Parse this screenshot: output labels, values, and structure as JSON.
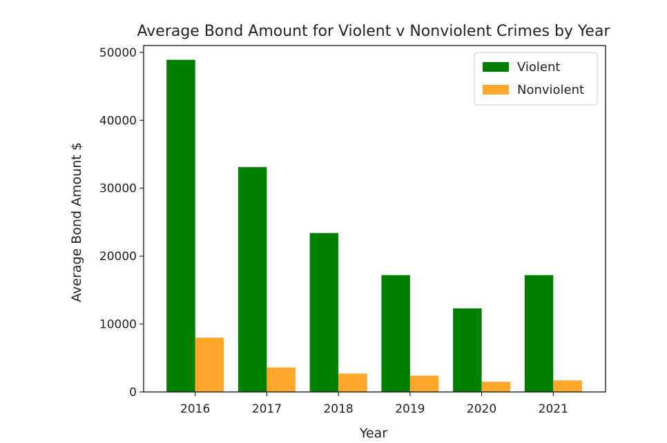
{
  "chart_data": {
    "type": "bar",
    "title": "Average Bond Amount for Violent v Nonviolent Crimes by Year",
    "xlabel": "Year",
    "ylabel": "Average Bond Amount $",
    "categories": [
      "2016",
      "2017",
      "2018",
      "2019",
      "2020",
      "2021"
    ],
    "series": [
      {
        "name": "Violent",
        "color": "#008000",
        "values": [
          48900,
          33100,
          23400,
          17200,
          12300,
          17200
        ]
      },
      {
        "name": "Nonviolent",
        "color": "#FFA62B",
        "values": [
          8000,
          3600,
          2700,
          2400,
          1500,
          1700
        ]
      }
    ],
    "ylim": [
      0,
      51000
    ],
    "yticks": [
      0,
      10000,
      20000,
      30000,
      40000,
      50000
    ],
    "grid": false,
    "legend_position": "top-right"
  }
}
